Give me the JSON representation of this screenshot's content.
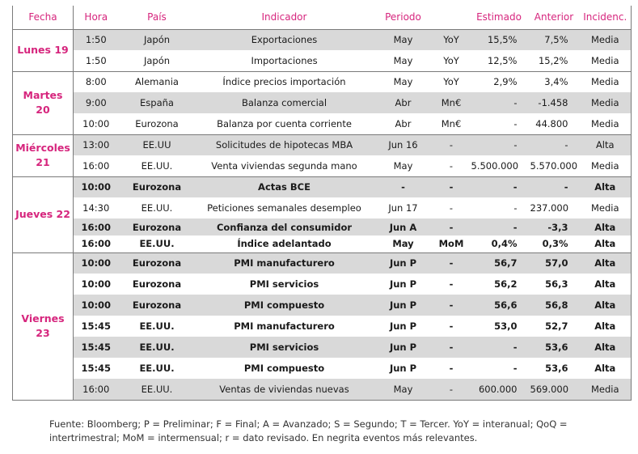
{
  "headers": {
    "fecha": "Fecha",
    "hora": "Hora",
    "pais": "País",
    "indicador": "Indicador",
    "periodo": "Periodo",
    "unidad": "",
    "estimado": "Estimado",
    "anterior": "Anterior",
    "incidencia": "Incidenc."
  },
  "days": [
    {
      "label": "Lunes 19"
    },
    {
      "label": "Martes 20"
    },
    {
      "label": "Miércoles 21"
    },
    {
      "label": "Jueves 22"
    },
    {
      "label": "Viernes 23"
    }
  ],
  "rows": [
    [
      {
        "hora": "1:50",
        "pais": "Japón",
        "indicador": "Exportaciones",
        "periodo": "May",
        "unidad": "YoY",
        "estimado": "15,5%",
        "anterior": "7,5%",
        "incidencia": "Media"
      },
      {
        "hora": "1:50",
        "pais": "Japón",
        "indicador": "Importaciones",
        "periodo": "May",
        "unidad": "YoY",
        "estimado": "12,5%",
        "anterior": "15,2%",
        "incidencia": "Media"
      }
    ],
    [
      {
        "hora": "8:00",
        "pais": "Alemania",
        "indicador": "Índice precios importación",
        "periodo": "May",
        "unidad": "YoY",
        "estimado": "2,9%",
        "anterior": "3,4%",
        "incidencia": "Media"
      },
      {
        "hora": "9:00",
        "pais": "España",
        "indicador": "Balanza comercial",
        "periodo": "Abr",
        "unidad": "Mn€",
        "estimado": "-",
        "anterior": "-1.458",
        "incidencia": "Media"
      },
      {
        "hora": "10:00",
        "pais": "Eurozona",
        "indicador": "Balanza por cuenta corriente",
        "periodo": "Abr",
        "unidad": "Mn€",
        "estimado": "-",
        "anterior": "44.800",
        "incidencia": "Media"
      }
    ],
    [
      {
        "hora": "13:00",
        "pais": "EE.UU",
        "indicador": "Solicitudes de hipotecas MBA",
        "periodo": "Jun 16",
        "unidad": "-",
        "estimado": "-",
        "anterior": "-",
        "incidencia": "Alta"
      },
      {
        "hora": "16:00",
        "pais": "EE.UU.",
        "indicador": "Venta viviendas segunda mano",
        "periodo": "May",
        "unidad": "-",
        "estimado": "5.500.000",
        "anterior": "5.570.000",
        "incidencia": "Media"
      }
    ],
    [
      {
        "hora": "10:00",
        "pais": "Eurozona",
        "indicador": "Actas BCE",
        "periodo": "-",
        "unidad": "-",
        "estimado": "-",
        "anterior": "-",
        "incidencia": "Alta"
      },
      {
        "hora": "14:30",
        "pais": "EE.UU.",
        "indicador": "Peticiones semanales desempleo",
        "periodo": "Jun 17",
        "unidad": "-",
        "estimado": "-",
        "anterior": "237.000",
        "incidencia": "Media"
      },
      {
        "hora": "16:00",
        "pais": "Eurozona",
        "indicador": "Confianza del consumidor",
        "periodo": "Jun A",
        "unidad": "-",
        "estimado": "-",
        "anterior": "-3,3",
        "incidencia": "Alta"
      },
      {
        "hora": "16:00",
        "pais": "EE.UU.",
        "indicador": "Índice adelantado",
        "periodo": "May",
        "unidad": "MoM",
        "estimado": "0,4%",
        "anterior": "0,3%",
        "incidencia": "Alta"
      }
    ],
    [
      {
        "hora": "10:00",
        "pais": "Eurozona",
        "indicador": "PMI manufacturero",
        "periodo": "Jun P",
        "unidad": "-",
        "estimado": "56,7",
        "anterior": "57,0",
        "incidencia": "Alta"
      },
      {
        "hora": "10:00",
        "pais": "Eurozona",
        "indicador": "PMI servicios",
        "periodo": "Jun P",
        "unidad": "-",
        "estimado": "56,2",
        "anterior": "56,3",
        "incidencia": "Alta"
      },
      {
        "hora": "10:00",
        "pais": "Eurozona",
        "indicador": "PMI compuesto",
        "periodo": "Jun P",
        "unidad": "-",
        "estimado": "56,6",
        "anterior": "56,8",
        "incidencia": "Alta"
      },
      {
        "hora": "15:45",
        "pais": "EE.UU.",
        "indicador": "PMI manufacturero",
        "periodo": "Jun P",
        "unidad": "-",
        "estimado": "53,0",
        "anterior": "52,7",
        "incidencia": "Alta"
      },
      {
        "hora": "15:45",
        "pais": "EE.UU.",
        "indicador": "PMI servicios",
        "periodo": "Jun P",
        "unidad": "-",
        "estimado": "-",
        "anterior": "53,6",
        "incidencia": "Alta"
      },
      {
        "hora": "15:45",
        "pais": "EE.UU.",
        "indicador": "PMI compuesto",
        "periodo": "Jun P",
        "unidad": "-",
        "estimado": "-",
        "anterior": "53,6",
        "incidencia": "Alta"
      },
      {
        "hora": "16:00",
        "pais": "EE.UU.",
        "indicador": "Ventas de viviendas nuevas",
        "periodo": "May",
        "unidad": "-",
        "estimado": "600.000",
        "anterior": "569.000",
        "incidencia": "Media"
      }
    ]
  ],
  "footer": {
    "line1": "Fuente: Bloomberg; P = Preliminar; F = Final; A = Avanzado; S = Segundo; T = Tercer.  YoY = interanual; QoQ =",
    "line2": "intertrimestral; MoM = intermensual; r = dato revisado. En negrita eventos más relevantes."
  },
  "colors": {
    "accent": "#d6257d",
    "stripe": "#d9d9d9",
    "border": "#7a7a7a"
  }
}
